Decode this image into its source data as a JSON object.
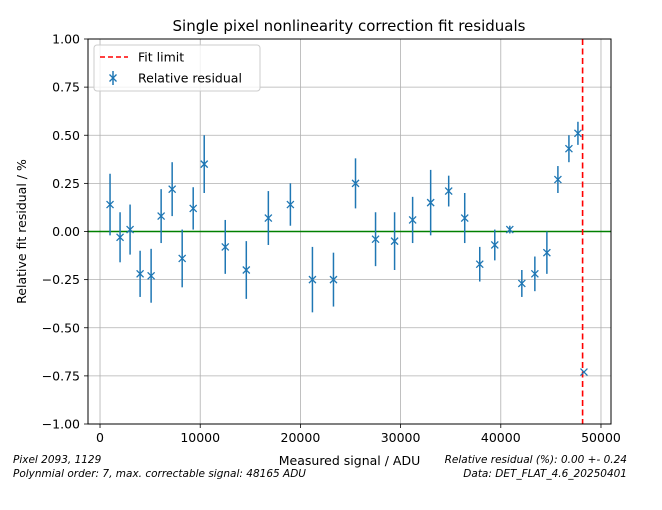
{
  "chart_data": {
    "type": "scatter",
    "title": "Single pixel nonlinearity correction fit residuals",
    "xlabel": "Measured signal / ADU",
    "ylabel": "Relative fit residual / %",
    "xlim": [
      -1200,
      51000
    ],
    "ylim": [
      -1.0,
      1.0
    ],
    "xticks": [
      0,
      10000,
      20000,
      30000,
      40000,
      50000
    ],
    "xtick_labels": [
      "0",
      "10000",
      "20000",
      "30000",
      "40000",
      "50000"
    ],
    "yticks": [
      -1.0,
      -0.75,
      -0.5,
      -0.25,
      0.0,
      0.25,
      0.5,
      0.75,
      1.0
    ],
    "ytick_labels": [
      "−1.00",
      "−0.75",
      "−0.50",
      "−0.25",
      "0.00",
      "0.25",
      "0.50",
      "0.75",
      "1.00"
    ],
    "grid": true,
    "legend_position": "top-left",
    "zero_line": {
      "y": 0.0,
      "color": "#008000"
    },
    "fit_limit": {
      "name": "Fit limit",
      "x": 48165,
      "color": "#ff0000"
    },
    "series": [
      {
        "name": "Relative residual",
        "color": "#1f77b4",
        "marker": "x",
        "points": [
          {
            "x": 1000,
            "y": 0.14,
            "err": 0.16
          },
          {
            "x": 2000,
            "y": -0.03,
            "err": 0.13
          },
          {
            "x": 3000,
            "y": 0.01,
            "err": 0.13
          },
          {
            "x": 4000,
            "y": -0.22,
            "err": 0.12
          },
          {
            "x": 5100,
            "y": -0.23,
            "err": 0.14
          },
          {
            "x": 6100,
            "y": 0.08,
            "err": 0.14
          },
          {
            "x": 7200,
            "y": 0.22,
            "err": 0.14
          },
          {
            "x": 8200,
            "y": -0.14,
            "err": 0.15
          },
          {
            "x": 9300,
            "y": 0.12,
            "err": 0.11
          },
          {
            "x": 10400,
            "y": 0.35,
            "err": 0.15
          },
          {
            "x": 12500,
            "y": -0.08,
            "err": 0.14
          },
          {
            "x": 14600,
            "y": -0.2,
            "err": 0.15
          },
          {
            "x": 16800,
            "y": 0.07,
            "err": 0.14
          },
          {
            "x": 19000,
            "y": 0.14,
            "err": 0.11
          },
          {
            "x": 21200,
            "y": -0.25,
            "err": 0.17
          },
          {
            "x": 23300,
            "y": -0.25,
            "err": 0.14
          },
          {
            "x": 25500,
            "y": 0.25,
            "err": 0.13
          },
          {
            "x": 27500,
            "y": -0.04,
            "err": 0.14
          },
          {
            "x": 29400,
            "y": -0.05,
            "err": 0.15
          },
          {
            "x": 31200,
            "y": 0.06,
            "err": 0.12
          },
          {
            "x": 33000,
            "y": 0.15,
            "err": 0.17
          },
          {
            "x": 34800,
            "y": 0.21,
            "err": 0.08
          },
          {
            "x": 36400,
            "y": 0.07,
            "err": 0.13
          },
          {
            "x": 37900,
            "y": -0.17,
            "err": 0.09
          },
          {
            "x": 39400,
            "y": -0.07,
            "err": 0.08
          },
          {
            "x": 40900,
            "y": 0.01,
            "err": 0.02
          },
          {
            "x": 42100,
            "y": -0.27,
            "err": 0.07
          },
          {
            "x": 43400,
            "y": -0.22,
            "err": 0.09
          },
          {
            "x": 44600,
            "y": -0.11,
            "err": 0.11
          },
          {
            "x": 45700,
            "y": 0.27,
            "err": 0.07
          },
          {
            "x": 46800,
            "y": 0.43,
            "err": 0.07
          },
          {
            "x": 47700,
            "y": 0.51,
            "err": 0.06
          },
          {
            "x": 48300,
            "y": -0.73,
            "err": 0.0
          }
        ]
      }
    ]
  },
  "footer": {
    "left_line1": "Pixel 2093, 1129",
    "left_line2": "Polynmial order: 7, max. correctable signal:  48165 ADU",
    "right_line1": "Relative residual (%): 0.00 +- 0.24",
    "right_line2": "Data: DET_FLAT_4.6_20250401"
  }
}
